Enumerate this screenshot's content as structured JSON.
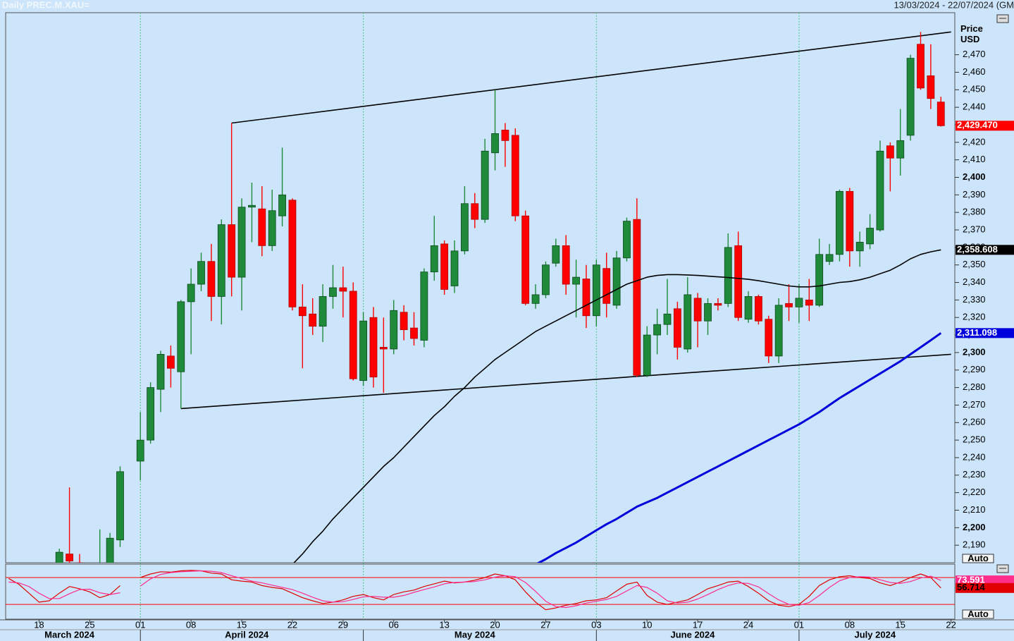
{
  "header": {
    "title": "Daily PREC.M.XAU=",
    "range": "13/03/2024 - 22/07/2024 (GM"
  },
  "chart_data": [
    {
      "type": "candlestick",
      "ylabel": "Price USD",
      "scale_mode": "Auto",
      "categories": [
        "13/03/2024",
        "14/03/2024",
        "15/03/2024",
        "18/03/2024",
        "19/03/2024",
        "20/03/2024",
        "21/03/2024",
        "22/03/2024",
        "25/03/2024",
        "26/03/2024",
        "27/03/2024",
        "28/03/2024",
        "29/03/2024",
        "01/04/2024",
        "02/04/2024",
        "03/04/2024",
        "04/04/2024",
        "05/04/2024",
        "08/04/2024",
        "09/04/2024",
        "10/04/2024",
        "11/04/2024",
        "12/04/2024",
        "15/04/2024",
        "16/04/2024",
        "17/04/2024",
        "18/04/2024",
        "19/04/2024",
        "22/04/2024",
        "23/04/2024",
        "24/04/2024",
        "25/04/2024",
        "26/04/2024",
        "29/04/2024",
        "30/04/2024",
        "01/05/2024",
        "02/05/2024",
        "03/05/2024",
        "06/05/2024",
        "07/05/2024",
        "08/05/2024",
        "09/05/2024",
        "10/05/2024",
        "13/05/2024",
        "14/05/2024",
        "15/05/2024",
        "16/05/2024",
        "17/05/2024",
        "20/05/2024",
        "21/05/2024",
        "22/05/2024",
        "23/05/2024",
        "24/05/2024",
        "27/05/2024",
        "28/05/2024",
        "29/05/2024",
        "30/05/2024",
        "31/05/2024",
        "03/06/2024",
        "04/06/2024",
        "05/06/2024",
        "06/06/2024",
        "07/06/2024",
        "10/06/2024",
        "11/06/2024",
        "12/06/2024",
        "13/06/2024",
        "14/06/2024",
        "17/06/2024",
        "18/06/2024",
        "19/06/2024",
        "20/06/2024",
        "21/06/2024",
        "24/06/2024",
        "25/06/2024",
        "26/06/2024",
        "27/06/2024",
        "28/06/2024",
        "01/07/2024",
        "02/07/2024",
        "03/07/2024",
        "04/07/2024",
        "05/07/2024",
        "08/07/2024",
        "09/07/2024",
        "10/07/2024",
        "11/07/2024",
        "12/07/2024",
        "15/07/2024",
        "16/07/2024",
        "17/07/2024",
        "18/07/2024",
        "19/07/2024",
        "22/07/2024"
      ],
      "open": [
        null,
        null,
        null,
        null,
        null,
        2165,
        2185,
        2180,
        2166,
        2172,
        2179,
        2193,
        null,
        2238,
        2250,
        2279,
        2298,
        2289,
        2329,
        2339,
        2352,
        2332,
        2373,
        2343,
        2383,
        2382,
        2361,
        2378,
        2387,
        2326,
        2322,
        2315,
        2332,
        2337,
        2335,
        2284,
        2320,
        2303,
        2302,
        2323,
        2314,
        2307,
        2346,
        2362,
        2338,
        2358,
        2385,
        2376,
        2414,
        2427,
        2424,
        2378,
        2328,
        2333,
        2351,
        2361,
        2339,
        2342,
        2321,
        2348,
        2327,
        2354,
        2376,
        2287,
        2310,
        2316,
        2325,
        2302,
        2331,
        2318,
        2328,
        2328,
        2361,
        2319,
        2332,
        2319,
        2298,
        2328,
        2326,
        2330,
        2327,
        2352,
        2356,
        2392,
        2358,
        2362,
        2370,
        2418,
        2411,
        2424,
        2476,
        2458,
        2443,
        null
      ],
      "high": [
        null,
        null,
        null,
        null,
        null,
        2188,
        2223,
        2185,
        2180,
        2199,
        2197,
        2235,
        null,
        2266,
        2283,
        2301,
        2304,
        2330,
        2348,
        2357,
        2362,
        2376,
        2431,
        2388,
        2397,
        2395,
        2393,
        2417,
        2388,
        2339,
        2331,
        2339,
        2350,
        2349,
        2340,
        2323,
        2326,
        2320,
        2330,
        2327,
        2323,
        2348,
        2378,
        2364,
        2364,
        2395,
        2391,
        2422,
        2450,
        2431,
        2428,
        2381,
        2339,
        2352,
        2365,
        2367,
        2353,
        2350,
        2353,
        2357,
        2358,
        2377,
        2388,
        2315,
        2325,
        2342,
        2329,
        2343,
        2334,
        2331,
        2331,
        2368,
        2369,
        2335,
        2333,
        2321,
        2331,
        2339,
        2339,
        2342,
        2365,
        2362,
        2393,
        2394,
        2369,
        2379,
        2421,
        2420,
        2439,
        2470,
        2483,
        2476,
        2446,
        null
      ],
      "low": [
        null,
        null,
        null,
        null,
        null,
        2158,
        2176,
        2163,
        2162,
        2170,
        2172,
        2189,
        null,
        2227,
        2248,
        2266,
        2280,
        2268,
        2299,
        2335,
        2318,
        2316,
        2332,
        2324,
        2363,
        2355,
        2358,
        2372,
        2324,
        2291,
        2310,
        2306,
        2325,
        2320,
        2284,
        2281,
        2280,
        2277,
        2299,
        2307,
        2304,
        2303,
        2341,
        2333,
        2334,
        2356,
        2371,
        2374,
        2404,
        2406,
        2375,
        2327,
        2325,
        2331,
        2349,
        2333,
        2320,
        2314,
        2315,
        2320,
        2325,
        2352,
        2286,
        2286,
        2299,
        2310,
        2296,
        2300,
        2303,
        2310,
        2324,
        2326,
        2318,
        2317,
        2316,
        2294,
        2294,
        2318,
        2317,
        2318,
        2326,
        2350,
        2352,
        2349,
        2349,
        2359,
        2369,
        2392,
        2401,
        2421,
        2450,
        2439,
        2429,
        null
      ],
      "close": [
        null,
        null,
        null,
        null,
        null,
        2186,
        2181,
        2166,
        2172,
        2179,
        2194,
        2232,
        null,
        2250,
        2280,
        2299,
        2291,
        2329,
        2339,
        2352,
        2332,
        2373,
        2343,
        2383,
        2384,
        2361,
        2381,
        2390,
        2326,
        2321,
        2315,
        2332,
        2337,
        2335,
        2285,
        2318,
        2286,
        2302,
        2324,
        2313,
        2308,
        2346,
        2361,
        2336,
        2358,
        2385,
        2376,
        2415,
        2425,
        2421,
        2378,
        2328,
        2333,
        2350,
        2361,
        2339,
        2343,
        2321,
        2350,
        2328,
        2354,
        2375,
        2287,
        2310,
        2316,
        2322,
        2303,
        2333,
        2318,
        2328,
        2327,
        2360,
        2320,
        2332,
        2318,
        2298,
        2327,
        2326,
        2331,
        2327,
        2356,
        2356,
        2392,
        2358,
        2363,
        2371,
        2415,
        2411,
        2421,
        2468,
        2451,
        2445,
        2429.47,
        null
      ],
      "last_label": "2,429.470",
      "up_color": "#1f8b3a",
      "down_color": "#ff0000",
      "series": [
        {
          "color": "#000000",
          "width": 1.6,
          "last_label": "2,358.608",
          "values": [
            null,
            null,
            null,
            null,
            null,
            null,
            null,
            null,
            null,
            null,
            null,
            null,
            null,
            null,
            null,
            null,
            null,
            null,
            null,
            null,
            null,
            null,
            null,
            null,
            null,
            null,
            null,
            null,
            2179,
            2185,
            2192,
            2198,
            2205,
            2211,
            2217,
            2223,
            2229,
            2235,
            2240,
            2246,
            2252,
            2258,
            2264,
            2269,
            2275,
            2280,
            2286,
            2291,
            2296,
            2300,
            2304,
            2308,
            2312,
            2315,
            2318,
            2321,
            2324,
            2327,
            2330,
            2333,
            2336,
            2339,
            2341,
            2343,
            2344,
            2344.5,
            2344.5,
            2344.3,
            2344,
            2343.6,
            2343.2,
            2342.8,
            2342.3,
            2341.8,
            2341,
            2340,
            2339,
            2338,
            2337.5,
            2337.5,
            2338,
            2339,
            2340,
            2340.5,
            2341.5,
            2343,
            2345,
            2347,
            2350,
            2353.5,
            2356,
            2357.5,
            2358.608,
            null
          ]
        },
        {
          "color": "#0000dd",
          "width": 3,
          "last_label": "2,311.098",
          "values": [
            null,
            null,
            null,
            null,
            null,
            null,
            null,
            null,
            null,
            null,
            null,
            null,
            null,
            null,
            null,
            null,
            null,
            null,
            null,
            null,
            null,
            null,
            null,
            null,
            null,
            null,
            null,
            null,
            null,
            null,
            null,
            null,
            null,
            null,
            null,
            null,
            null,
            null,
            null,
            null,
            null,
            null,
            null,
            null,
            null,
            null,
            null,
            null,
            null,
            null,
            null,
            null,
            2179,
            2182,
            2185.5,
            2188.5,
            2191.5,
            2195,
            2198.5,
            2202,
            2205,
            2208.5,
            2212,
            2214.5,
            2217,
            2220,
            2223,
            2226,
            2229,
            2232,
            2235,
            2238,
            2241,
            2244,
            2247,
            2250,
            2253,
            2256,
            2259,
            2262.5,
            2266,
            2270,
            2274,
            2277.5,
            2281,
            2284.5,
            2288,
            2291.5,
            2295,
            2299,
            2303,
            2307,
            2311.098,
            null
          ]
        }
      ],
      "trendlines": [
        {
          "x": [
            "12/04/2024",
            "22/07/2024"
          ],
          "y": [
            2431,
            2483
          ]
        },
        {
          "x": [
            "05/04/2024",
            "22/07/2024"
          ],
          "y": [
            2268,
            2299
          ]
        }
      ],
      "ylim": [
        2180,
        2494
      ],
      "yticks": [
        {
          "value": 2190,
          "label": "2,190"
        },
        {
          "value": 2200,
          "label": "2,200"
        },
        {
          "value": 2210,
          "label": "2,210"
        },
        {
          "value": 2220,
          "label": "2,220"
        },
        {
          "value": 2230,
          "label": "2,230"
        },
        {
          "value": 2240,
          "label": "2,240"
        },
        {
          "value": 2250,
          "label": "2,250"
        },
        {
          "value": 2260,
          "label": "2,260"
        },
        {
          "value": 2270,
          "label": "2,270"
        },
        {
          "value": 2280,
          "label": "2,280"
        },
        {
          "value": 2290,
          "label": "2,290"
        },
        {
          "value": 2300,
          "label": "2,300"
        },
        {
          "value": 2310,
          "label": "2,310"
        },
        {
          "value": 2320,
          "label": "2,320"
        },
        {
          "value": 2330,
          "label": "2,330"
        },
        {
          "value": 2340,
          "label": "2,340"
        },
        {
          "value": 2350,
          "label": "2,350"
        },
        {
          "value": 2360,
          "label": "2,360"
        },
        {
          "value": 2370,
          "label": "2,370"
        },
        {
          "value": 2380,
          "label": "2,380"
        },
        {
          "value": 2390,
          "label": "2,390"
        },
        {
          "value": 2400,
          "label": "2,400"
        },
        {
          "value": 2410,
          "label": "2,410"
        },
        {
          "value": 2420,
          "label": "2,420"
        },
        {
          "value": 2430,
          "label": "2,430"
        },
        {
          "value": 2440,
          "label": "2,440"
        },
        {
          "value": 2450,
          "label": "2,450"
        },
        {
          "value": 2460,
          "label": "2,460"
        },
        {
          "value": 2470,
          "label": "2,470"
        }
      ],
      "xticks": [
        {
          "value": "18/03/2024",
          "label": "18"
        },
        {
          "value": "25/03/2024",
          "label": "25"
        },
        {
          "value": "01/04/2024",
          "label": "01"
        },
        {
          "value": "08/04/2024",
          "label": "08"
        },
        {
          "value": "15/04/2024",
          "label": "15"
        },
        {
          "value": "22/04/2024",
          "label": "22"
        },
        {
          "value": "29/04/2024",
          "label": "29"
        },
        {
          "value": "06/05/2024",
          "label": "06"
        },
        {
          "value": "13/05/2024",
          "label": "13"
        },
        {
          "value": "20/05/2024",
          "label": "20"
        },
        {
          "value": "27/05/2024",
          "label": "27"
        },
        {
          "value": "03/06/2024",
          "label": "03"
        },
        {
          "value": "10/06/2024",
          "label": "10"
        },
        {
          "value": "17/06/2024",
          "label": "17"
        },
        {
          "value": "24/06/2024",
          "label": "24"
        },
        {
          "value": "01/07/2024",
          "label": "01"
        },
        {
          "value": "08/07/2024",
          "label": "08"
        },
        {
          "value": "15/07/2024",
          "label": "15"
        },
        {
          "value": "22/07/2024",
          "label": "22"
        }
      ],
      "month_labels": [
        "March 2024",
        "April 2024",
        "May 2024",
        "June 2024",
        "July 2024"
      ]
    },
    {
      "type": "line",
      "scale_mode": "Auto",
      "ylim": [
        -13,
        110
      ],
      "levels": [
        80,
        20
      ],
      "level_color": "#ff0000",
      "series": [
        {
          "color": "#e00000",
          "label_text_color": "#000000",
          "last_label": "56.714",
          "values": [
            78,
            65,
            45,
            25,
            28,
            45,
            60,
            55,
            48,
            35,
            42,
            62,
            null,
            80,
            88,
            93,
            92,
            95,
            96,
            95,
            90,
            88,
            75,
            72,
            70,
            62,
            58,
            55,
            45,
            35,
            28,
            22,
            25,
            30,
            38,
            42,
            35,
            30,
            42,
            48,
            52,
            60,
            66,
            72,
            68,
            70,
            74,
            80,
            88,
            84,
            75,
            48,
            25,
            8,
            12,
            18,
            22,
            28,
            30,
            35,
            50,
            65,
            70,
            40,
            25,
            20,
            25,
            30,
            42,
            55,
            62,
            70,
            72,
            60,
            45,
            28,
            18,
            15,
            20,
            38,
            62,
            75,
            82,
            84,
            80,
            78,
            68,
            62,
            70,
            80,
            88,
            80,
            56.714,
            null
          ]
        },
        {
          "color": "#ff2d8c",
          "label_text_color": "#ffffff",
          "last_label": "73.591",
          "values": [
            70,
            68,
            60,
            45,
            33,
            33,
            44,
            53,
            54,
            46,
            42,
            46,
            null,
            61,
            77,
            87,
            91,
            93,
            94,
            95,
            94,
            91,
            84,
            78,
            72,
            68,
            63,
            58,
            53,
            45,
            36,
            28,
            25,
            26,
            31,
            37,
            38,
            36,
            36,
            40,
            47,
            53,
            59,
            66,
            69,
            70,
            71,
            75,
            81,
            84,
            82,
            69,
            49,
            27,
            15,
            13,
            17,
            23,
            27,
            31,
            38,
            50,
            62,
            58,
            45,
            28,
            23,
            25,
            32,
            42,
            53,
            62,
            68,
            67,
            59,
            44,
            30,
            20,
            18,
            24,
            40,
            58,
            73,
            80,
            82,
            81,
            75,
            69,
            67,
            71,
            79,
            83,
            73.591,
            null
          ]
        }
      ]
    }
  ]
}
